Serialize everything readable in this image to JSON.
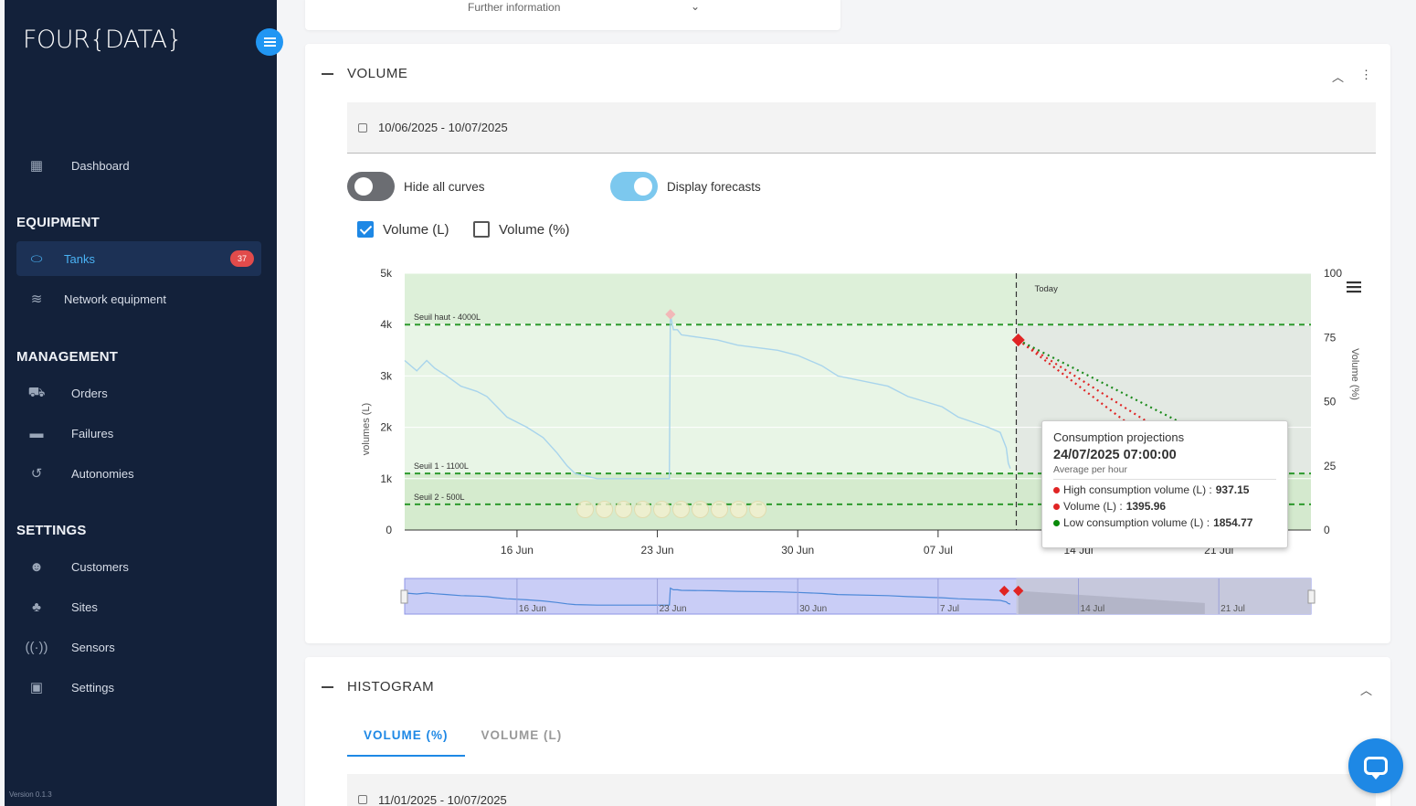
{
  "app": {
    "logo": "FOUR{DATA}",
    "version": "Version 0.1.3"
  },
  "sidebar": {
    "items": [
      {
        "label": "Dashboard",
        "icon": "dashboard-icon"
      },
      {
        "label": "Tanks",
        "icon": "tank-icon",
        "badge": "37"
      },
      {
        "label": "Network equipment",
        "icon": "wifi-icon"
      },
      {
        "label": "Orders",
        "icon": "truck-icon"
      },
      {
        "label": "Failures",
        "icon": "failure-icon"
      },
      {
        "label": "Autonomies",
        "icon": "history-icon"
      },
      {
        "label": "Customers",
        "icon": "customers-icon"
      },
      {
        "label": "Sites",
        "icon": "sites-icon"
      },
      {
        "label": "Sensors",
        "icon": "sensor-icon"
      },
      {
        "label": "Settings",
        "icon": "settings-icon"
      }
    ],
    "sections": {
      "equipment": "EQUIPMENT",
      "management": "MANAGEMENT",
      "settings": "SETTINGS"
    }
  },
  "further_info": {
    "label": "Further information"
  },
  "volume": {
    "title": "VOLUME",
    "date_range": "10/06/2025 - 10/07/2025",
    "toggles": {
      "hide_curves": "Hide all curves",
      "display_forecasts": "Display forecasts"
    },
    "checkboxes": {
      "volume_l": "Volume (L)",
      "volume_pct": "Volume (%)"
    }
  },
  "chart_data": {
    "type": "line",
    "ylabel": "volumes (L)",
    "y2label": "Volume (%)",
    "ylim": [
      0,
      5000
    ],
    "y2lim": [
      0,
      100
    ],
    "yticks": [
      "0",
      "1k",
      "2k",
      "3k",
      "4k",
      "5k"
    ],
    "y2ticks": [
      "0",
      "25",
      "50",
      "75",
      "100"
    ],
    "xticks": [
      "16 Jun",
      "23 Jun",
      "30 Jun",
      "07 Jul",
      "14 Jul",
      "21 Jul"
    ],
    "navigator_ticks": [
      "16 Jun",
      "23 Jun",
      "30 Jun",
      "7 Jul",
      "14 Jul",
      "21 Jul"
    ],
    "thresholds": [
      {
        "label": "Seuil haut - 4000L",
        "value": 4000
      },
      {
        "label": "Seuil 1 - 1100L",
        "value": 1100
      },
      {
        "label": "Seuil 2 - 500L",
        "value": 500
      }
    ],
    "today_label": "Today",
    "series": [
      {
        "name": "Volume (L)",
        "x_days": [
          0.4,
          1.0,
          1.5,
          1.9,
          2.5,
          3.2,
          4.0,
          4.5,
          5.0,
          5.5,
          6.5,
          7.3,
          8.0,
          8.5,
          8.9,
          10.0,
          11.2,
          13.6,
          13.65,
          13.8,
          14.0,
          14.2,
          16.0,
          17.0,
          19.0,
          20.0,
          21.2,
          22.0,
          24.5,
          25.5,
          27.2,
          28.0,
          29.5,
          30.1,
          30.4,
          30.5,
          30.6
        ],
        "y": [
          3300,
          3100,
          3300,
          3150,
          3000,
          2800,
          2700,
          2600,
          2400,
          2200,
          2000,
          1800,
          1500,
          1250,
          1100,
          1000,
          1000,
          1000,
          4200,
          3900,
          3900,
          3800,
          3700,
          3600,
          3500,
          3400,
          3200,
          3000,
          2800,
          2600,
          2400,
          2200,
          2000,
          1900,
          1600,
          1300,
          1200
        ]
      },
      {
        "name": "High consumption volume (L)",
        "x_days": [
          31.0,
          40.3
        ],
        "y": [
          3700,
          937.15
        ]
      },
      {
        "name": "Volume (L)",
        "x_days": [
          31.0,
          40.3
        ],
        "y": [
          3700,
          1395.96
        ]
      },
      {
        "name": "Low consumption volume (L)",
        "x_days": [
          31.0,
          40.3
        ],
        "y": [
          3700,
          1854.77
        ]
      }
    ]
  },
  "tooltip": {
    "title": "Consumption projections",
    "datetime": "24/07/2025 07:00:00",
    "subtitle": "Average per hour",
    "rows": [
      {
        "label": "High consumption volume (L) : ",
        "value": "937.15",
        "color": "#e02424"
      },
      {
        "label": "Volume (L) : ",
        "value": "1395.96",
        "color": "#e02424"
      },
      {
        "label": "Low consumption volume (L) : ",
        "value": "1854.77",
        "color": "#0a8a0a"
      }
    ]
  },
  "histogram": {
    "title": "HISTOGRAM",
    "tabs": [
      "VOLUME (%)",
      "VOLUME (L)"
    ],
    "date_range": "11/01/2025 - 10/07/2025"
  }
}
